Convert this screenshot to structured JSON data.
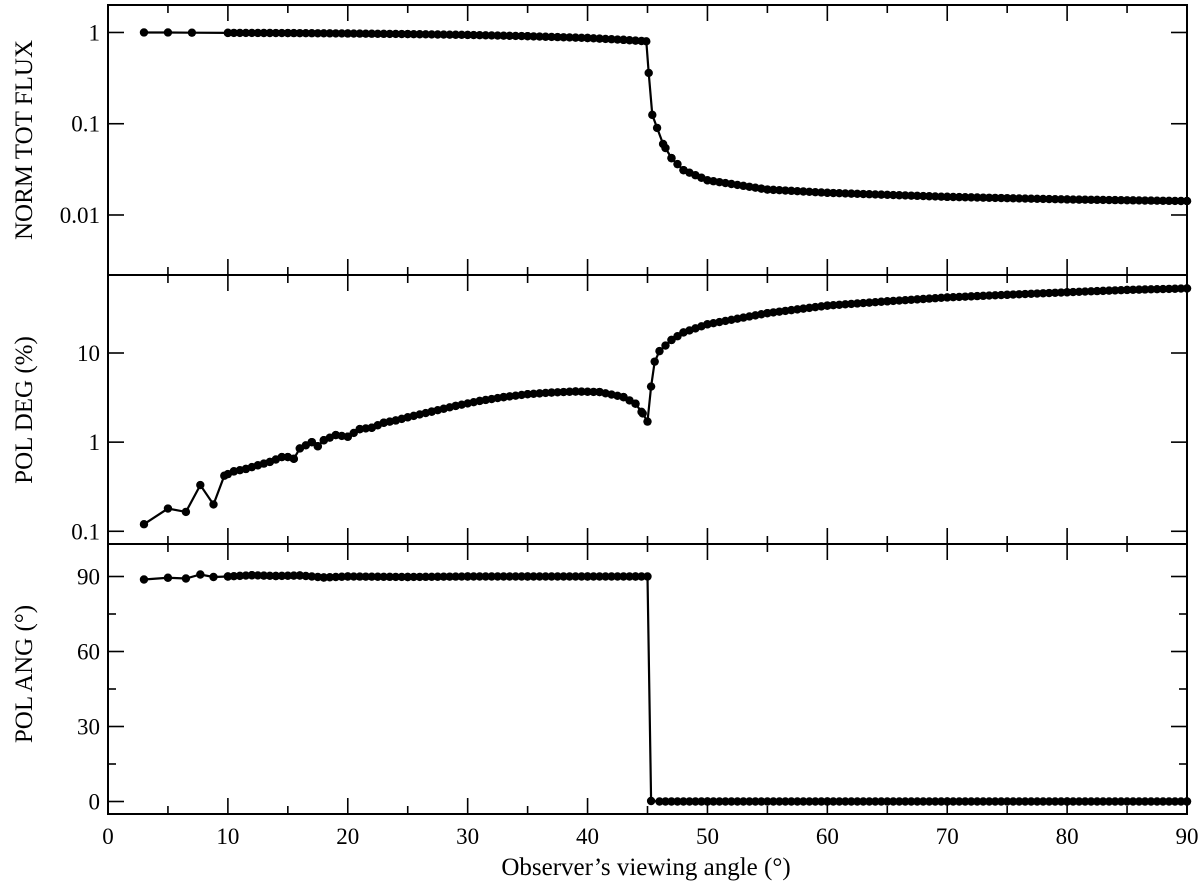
{
  "chart_data": [
    {
      "type": "line",
      "ylabel": "NORM TOT FLUX",
      "yscale": "log",
      "ylim": [
        0.0022,
        2.0
      ],
      "yticks": [
        0.01,
        0.1,
        1
      ],
      "yticklabels": [
        "0.01",
        "0.1",
        "1"
      ],
      "xlim": [
        0,
        90
      ],
      "xticks": [
        0,
        10,
        20,
        30,
        40,
        50,
        60,
        70,
        80,
        90
      ],
      "grid": false,
      "marker": "circle",
      "series": [
        {
          "points": [
            [
              3,
              1.0
            ],
            [
              5,
              1.0
            ],
            [
              7,
              0.995
            ],
            [
              10,
              0.99
            ],
            [
              15,
              0.985
            ],
            [
              20,
              0.975
            ],
            [
              25,
              0.96
            ],
            [
              30,
              0.94
            ],
            [
              35,
              0.91
            ],
            [
              40,
              0.87
            ],
            [
              43,
              0.83
            ],
            [
              44.9,
              0.8
            ],
            [
              45.1,
              0.36
            ],
            [
              45.4,
              0.125
            ],
            [
              45.8,
              0.09
            ],
            [
              46.3,
              0.06
            ],
            [
              47,
              0.042
            ],
            [
              48,
              0.031
            ],
            [
              50,
              0.024
            ],
            [
              55,
              0.019
            ],
            [
              60,
              0.0175
            ],
            [
              70,
              0.0158
            ],
            [
              80,
              0.0148
            ],
            [
              90,
              0.0142
            ]
          ]
        }
      ]
    },
    {
      "type": "line",
      "ylabel": "POL DEG (%)",
      "yscale": "log",
      "ylim": [
        0.072,
        75
      ],
      "yticks": [
        0.1,
        1,
        10
      ],
      "yticklabels": [
        "0.1",
        "1",
        "10"
      ],
      "xlim": [
        0,
        90
      ],
      "grid": false,
      "marker": "circle",
      "series": [
        {
          "points": [
            [
              3,
              0.12
            ],
            [
              5,
              0.18
            ],
            [
              6.5,
              0.165
            ],
            [
              7.7,
              0.33
            ],
            [
              8.8,
              0.2
            ],
            [
              9.7,
              0.42
            ],
            [
              10.5,
              0.47
            ],
            [
              11.5,
              0.5
            ],
            [
              12.5,
              0.55
            ],
            [
              13.5,
              0.6
            ],
            [
              14.5,
              0.68
            ],
            [
              15,
              0.68
            ],
            [
              15.5,
              0.65
            ],
            [
              16,
              0.85
            ],
            [
              17,
              1.0
            ],
            [
              17.5,
              0.9
            ],
            [
              18,
              1.05
            ],
            [
              19,
              1.2
            ],
            [
              20,
              1.15
            ],
            [
              21,
              1.4
            ],
            [
              22,
              1.45
            ],
            [
              23,
              1.65
            ],
            [
              24,
              1.75
            ],
            [
              25,
              1.9
            ],
            [
              27,
              2.2
            ],
            [
              29,
              2.55
            ],
            [
              31,
              2.9
            ],
            [
              33,
              3.2
            ],
            [
              35,
              3.45
            ],
            [
              37,
              3.6
            ],
            [
              39,
              3.7
            ],
            [
              41,
              3.65
            ],
            [
              43,
              3.2
            ],
            [
              44,
              2.7
            ],
            [
              44.6,
              2.1
            ],
            [
              45,
              1.7
            ],
            [
              45.3,
              4.2
            ],
            [
              45.6,
              8.0
            ],
            [
              46,
              10.5
            ],
            [
              47,
              14
            ],
            [
              48,
              17
            ],
            [
              50,
              21
            ],
            [
              55,
              28
            ],
            [
              60,
              34
            ],
            [
              65,
              38
            ],
            [
              70,
              42
            ],
            [
              75,
              45
            ],
            [
              80,
              48
            ],
            [
              85,
              51
            ],
            [
              90,
              53
            ]
          ]
        }
      ]
    },
    {
      "type": "line",
      "ylabel": "POL ANG (°)",
      "xlabel": "Observer’s viewing angle (°)",
      "yscale": "linear",
      "ylim": [
        -5,
        103
      ],
      "yticks": [
        0,
        30,
        60,
        90
      ],
      "yticklabels": [
        "0",
        "30",
        "60",
        "90"
      ],
      "xlim": [
        0,
        90
      ],
      "xticks": [
        0,
        10,
        20,
        30,
        40,
        50,
        60,
        70,
        80,
        90
      ],
      "xticklabels": [
        "0",
        "10",
        "20",
        "30",
        "40",
        "50",
        "60",
        "70",
        "80",
        "90"
      ],
      "grid": false,
      "marker": "circle",
      "series": [
        {
          "points": [
            [
              3,
              88.8
            ],
            [
              5,
              89.5
            ],
            [
              6.5,
              89.2
            ],
            [
              7.7,
              90.8
            ],
            [
              8.8,
              89.8
            ],
            [
              10,
              90
            ],
            [
              12,
              90.5
            ],
            [
              14,
              90.2
            ],
            [
              16,
              90.4
            ],
            [
              18,
              89.6
            ],
            [
              20,
              90
            ],
            [
              25,
              89.8
            ],
            [
              30,
              90
            ],
            [
              35,
              90
            ],
            [
              40,
              90
            ],
            [
              44,
              90
            ],
            [
              45,
              90
            ],
            [
              45.3,
              0.2
            ],
            [
              46,
              0
            ],
            [
              50,
              0
            ],
            [
              60,
              0
            ],
            [
              70,
              0
            ],
            [
              80,
              0
            ],
            [
              90,
              0
            ]
          ]
        }
      ]
    }
  ]
}
